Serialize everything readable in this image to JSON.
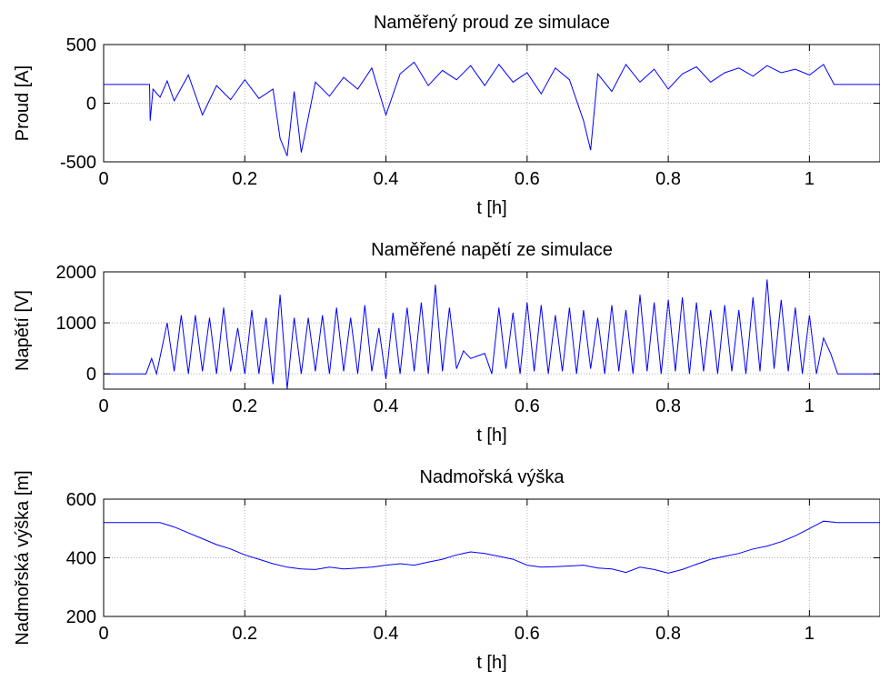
{
  "chart_data": [
    {
      "type": "line",
      "title": "Naměřený proud ze simulace",
      "xlabel": "t [h]",
      "ylabel": "Proud [A]",
      "xlim": [
        0,
        1.1
      ],
      "ylim": [
        -500,
        500
      ],
      "xticks": [
        0,
        0.2,
        0.4,
        0.6,
        0.8,
        1
      ],
      "xtick_labels": [
        "0",
        "0.2",
        "0.4",
        "0.6",
        "0.8",
        "1"
      ],
      "yticks": [
        -500,
        0,
        500
      ],
      "ytick_labels": [
        "-500",
        "0",
        "500"
      ],
      "grid": true,
      "line_color": "#0000ff",
      "x": [
        0,
        0.065,
        0.066,
        0.07,
        0.08,
        0.09,
        0.1,
        0.12,
        0.14,
        0.16,
        0.18,
        0.2,
        0.22,
        0.24,
        0.25,
        0.26,
        0.27,
        0.28,
        0.3,
        0.32,
        0.34,
        0.36,
        0.38,
        0.4,
        0.42,
        0.44,
        0.46,
        0.48,
        0.5,
        0.52,
        0.54,
        0.56,
        0.58,
        0.6,
        0.62,
        0.64,
        0.66,
        0.68,
        0.69,
        0.7,
        0.72,
        0.74,
        0.76,
        0.78,
        0.8,
        0.82,
        0.84,
        0.86,
        0.88,
        0.9,
        0.92,
        0.94,
        0.96,
        0.98,
        1.0,
        1.02,
        1.035,
        1.036,
        1.1
      ],
      "y": [
        160,
        160,
        -150,
        120,
        50,
        190,
        20,
        240,
        -100,
        150,
        30,
        200,
        40,
        120,
        -300,
        -450,
        100,
        -420,
        180,
        60,
        220,
        120,
        300,
        -100,
        250,
        350,
        150,
        280,
        200,
        320,
        150,
        330,
        180,
        260,
        80,
        300,
        200,
        -150,
        -400,
        250,
        100,
        330,
        180,
        290,
        120,
        250,
        310,
        180,
        260,
        300,
        230,
        320,
        260,
        290,
        240,
        330,
        160,
        160,
        160
      ]
    },
    {
      "type": "line",
      "title": "Naměřené napětí ze simulace",
      "xlabel": "t [h]",
      "ylabel": "Napětí [V]",
      "xlim": [
        0,
        1.1
      ],
      "ylim": [
        -300,
        2000
      ],
      "xticks": [
        0,
        0.2,
        0.4,
        0.6,
        0.8,
        1
      ],
      "xtick_labels": [
        "0",
        "0.2",
        "0.4",
        "0.6",
        "0.8",
        "1"
      ],
      "yticks": [
        0,
        1000,
        2000
      ],
      "ytick_labels": [
        "0",
        "1000",
        "2000"
      ],
      "grid": true,
      "line_color": "#0000ff",
      "x": [
        0,
        0.06,
        0.068,
        0.075,
        0.09,
        0.1,
        0.11,
        0.12,
        0.13,
        0.14,
        0.15,
        0.16,
        0.17,
        0.18,
        0.19,
        0.2,
        0.21,
        0.22,
        0.23,
        0.24,
        0.25,
        0.26,
        0.27,
        0.28,
        0.29,
        0.3,
        0.31,
        0.32,
        0.33,
        0.34,
        0.35,
        0.36,
        0.37,
        0.38,
        0.39,
        0.4,
        0.41,
        0.42,
        0.43,
        0.44,
        0.45,
        0.46,
        0.47,
        0.48,
        0.49,
        0.5,
        0.51,
        0.52,
        0.53,
        0.54,
        0.55,
        0.56,
        0.57,
        0.58,
        0.59,
        0.6,
        0.61,
        0.62,
        0.63,
        0.64,
        0.65,
        0.66,
        0.67,
        0.68,
        0.69,
        0.7,
        0.71,
        0.72,
        0.73,
        0.74,
        0.75,
        0.76,
        0.77,
        0.78,
        0.79,
        0.8,
        0.81,
        0.82,
        0.83,
        0.84,
        0.85,
        0.86,
        0.87,
        0.88,
        0.89,
        0.9,
        0.91,
        0.92,
        0.93,
        0.94,
        0.95,
        0.96,
        0.97,
        0.98,
        0.99,
        1.0,
        1.01,
        1.02,
        1.03,
        1.04,
        1.1
      ],
      "y": [
        0,
        0,
        300,
        0,
        1000,
        50,
        1150,
        0,
        1150,
        50,
        1100,
        0,
        1300,
        50,
        900,
        0,
        1250,
        0,
        1100,
        -200,
        1550,
        -300,
        1100,
        0,
        1100,
        50,
        1150,
        0,
        1300,
        50,
        1100,
        0,
        1350,
        50,
        900,
        -100,
        1200,
        0,
        1300,
        50,
        1400,
        0,
        1750,
        50,
        1300,
        100,
        450,
        300,
        350,
        400,
        0,
        1300,
        100,
        1200,
        0,
        1400,
        50,
        1350,
        0,
        1150,
        50,
        1300,
        0,
        1250,
        100,
        1100,
        0,
        1350,
        50,
        1250,
        0,
        1550,
        50,
        1400,
        0,
        1450,
        50,
        1500,
        0,
        1400,
        50,
        1250,
        0,
        1350,
        50,
        1250,
        0,
        1500,
        50,
        1850,
        100,
        1450,
        50,
        1300,
        0,
        1150,
        0,
        700,
        400,
        0,
        0
      ]
    },
    {
      "type": "line",
      "title": "Nadmořská výška",
      "xlabel": "t [h]",
      "ylabel": "Nadmořská výška [m]",
      "xlim": [
        0,
        1.1
      ],
      "ylim": [
        200,
        600
      ],
      "xticks": [
        0,
        0.2,
        0.4,
        0.6,
        0.8,
        1
      ],
      "xtick_labels": [
        "0",
        "0.2",
        "0.4",
        "0.6",
        "0.8",
        "1"
      ],
      "yticks": [
        200,
        400,
        600
      ],
      "ytick_labels": [
        "200",
        "400",
        "600"
      ],
      "grid": true,
      "line_color": "#0000ff",
      "x": [
        0,
        0.08,
        0.1,
        0.12,
        0.14,
        0.16,
        0.18,
        0.2,
        0.22,
        0.24,
        0.26,
        0.28,
        0.3,
        0.32,
        0.34,
        0.36,
        0.38,
        0.4,
        0.42,
        0.44,
        0.46,
        0.48,
        0.5,
        0.52,
        0.54,
        0.56,
        0.58,
        0.6,
        0.62,
        0.64,
        0.66,
        0.68,
        0.7,
        0.72,
        0.74,
        0.76,
        0.78,
        0.8,
        0.82,
        0.84,
        0.86,
        0.88,
        0.9,
        0.92,
        0.94,
        0.96,
        0.98,
        1.0,
        1.02,
        1.04,
        1.1
      ],
      "y": [
        520,
        520,
        505,
        485,
        465,
        445,
        430,
        410,
        395,
        380,
        368,
        362,
        360,
        368,
        362,
        365,
        368,
        375,
        380,
        375,
        385,
        395,
        410,
        420,
        415,
        405,
        395,
        375,
        368,
        370,
        372,
        375,
        365,
        362,
        350,
        368,
        360,
        348,
        360,
        378,
        395,
        405,
        415,
        430,
        440,
        455,
        475,
        500,
        525,
        520,
        520
      ]
    }
  ]
}
